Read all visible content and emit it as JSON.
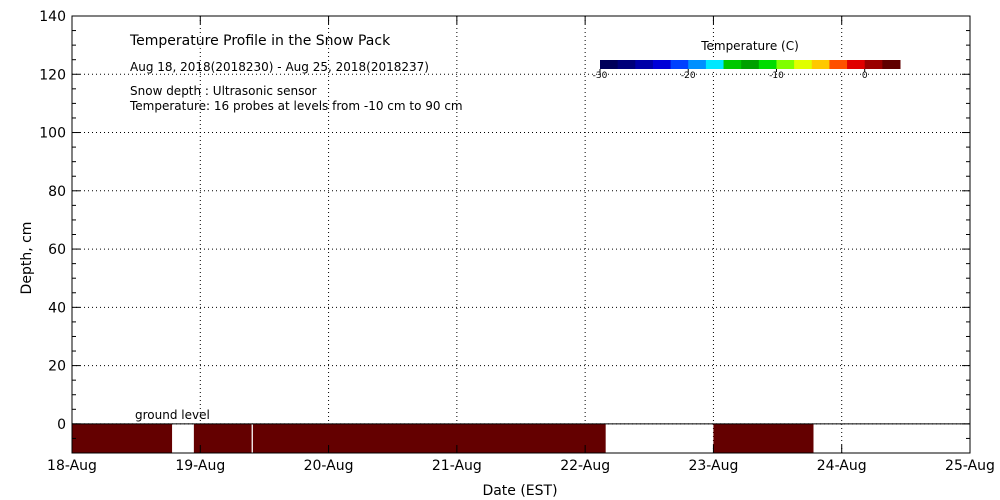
{
  "chart_data": {
    "type": "heatmap",
    "title": "Temperature Profile in the Snow Pack",
    "subtitle": "Aug 18, 2018(2018230) - Aug 25, 2018(2018237)",
    "notes": [
      "Snow depth : Ultrasonic sensor",
      "Temperature: 16 probes at levels from -10 cm to 90 cm"
    ],
    "ground_label": "ground level",
    "xlabel": "Date (EST)",
    "ylabel": "Depth, cm",
    "xlim": [
      0,
      7
    ],
    "ylim": [
      -10,
      140
    ],
    "x_ticks": [
      "18-Aug",
      "19-Aug",
      "20-Aug",
      "21-Aug",
      "22-Aug",
      "23-Aug",
      "24-Aug",
      "25-Aug"
    ],
    "y_ticks": [
      0,
      20,
      40,
      60,
      80,
      100,
      120,
      140
    ],
    "grid": true,
    "colorbar": {
      "title": "Temperature (C)",
      "range": [
        -30,
        4
      ],
      "ticks": [
        -30,
        -20,
        -10,
        0
      ],
      "tick_labels": [
        "-30",
        "-20",
        "-10",
        "0"
      ],
      "colors": [
        "#00005a",
        "#00007a",
        "#0000a8",
        "#0000d8",
        "#0040ff",
        "#0090ff",
        "#00e8ff",
        "#00c800",
        "#00a000",
        "#00dc00",
        "#80ff00",
        "#e0ff00",
        "#ffc800",
        "#ff5000",
        "#e00000",
        "#9a0000",
        "#600000"
      ]
    },
    "series": [
      {
        "segments_days": [
          [
            0,
            0.78
          ],
          [
            0.95,
            1.4
          ],
          [
            1.41,
            4.16
          ],
          [
            5.0,
            5.78
          ]
        ],
        "depth_range_cm": [
          -10,
          0
        ],
        "value": 4,
        "color": "#640000"
      }
    ]
  }
}
